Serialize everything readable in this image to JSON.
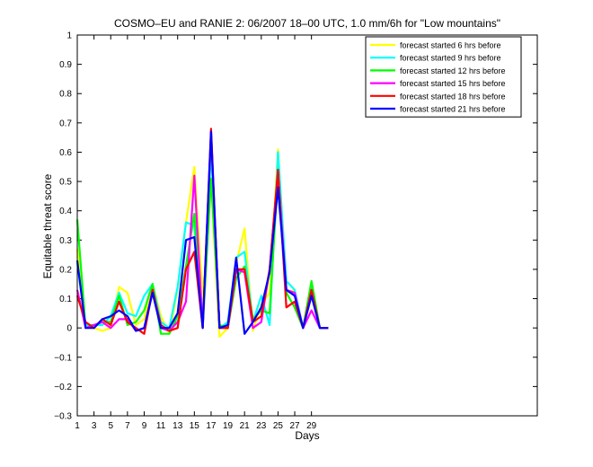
{
  "chart_data": {
    "type": "line",
    "title": "COSMO–EU and RANIE 2: 06/2007 18–00 UTC, 1.0 mm/6h for \"Low mountains\"",
    "xlabel": "Days",
    "ylabel": "Equitable threat score",
    "xlim": [
      1,
      56
    ],
    "ylim": [
      -0.3,
      1
    ],
    "xticks": [
      1,
      3,
      5,
      7,
      9,
      11,
      13,
      15,
      17,
      19,
      21,
      23,
      25,
      27,
      29
    ],
    "xtick_labels": [
      "1",
      "3",
      "5",
      "7",
      "9",
      "11",
      "13",
      "15",
      "17",
      "19",
      "21",
      "23",
      "25",
      "27",
      "29"
    ],
    "yticks": [
      -0.3,
      -0.2,
      -0.1,
      0,
      0.1,
      0.2,
      0.3,
      0.4,
      0.5,
      0.6,
      0.7,
      0.8,
      0.9,
      1
    ],
    "ytick_labels": [
      "−0.3",
      "−0.2",
      "−0.1",
      "0",
      "0.1",
      "0.2",
      "0.3",
      "0.4",
      "0.5",
      "0.6",
      "0.7",
      "0.8",
      "0.9",
      "1"
    ],
    "grid": false,
    "legend_position": "top-right",
    "x": [
      1,
      2,
      3,
      4,
      5,
      6,
      7,
      8,
      9,
      10,
      11,
      12,
      13,
      14,
      15,
      16,
      17,
      18,
      19,
      20,
      21,
      22,
      23,
      24,
      25,
      26,
      27,
      28,
      29,
      30,
      31
    ],
    "series": [
      {
        "name": "forecast started 6 hrs before",
        "color": "#ffff00",
        "values": [
          0.27,
          0.0,
          0.0,
          -0.01,
          0.0,
          0.14,
          0.12,
          0.01,
          0.03,
          0.15,
          0.04,
          -0.02,
          0.13,
          0.36,
          0.55,
          0.1,
          0.5,
          -0.03,
          0.0,
          0.22,
          0.34,
          -0.01,
          0.08,
          0.12,
          0.61,
          0.12,
          0.13,
          0.0,
          0.13,
          0.0,
          0.0
        ]
      },
      {
        "name": "forecast started 9 hrs before",
        "color": "#00ffff",
        "values": [
          0.22,
          0.01,
          0.01,
          0.01,
          0.04,
          0.12,
          0.05,
          0.04,
          0.11,
          0.15,
          0.02,
          0.0,
          0.14,
          0.36,
          0.35,
          0.0,
          0.61,
          0.0,
          0.02,
          0.24,
          0.26,
          0.02,
          0.11,
          0.01,
          0.6,
          0.16,
          0.13,
          0.0,
          0.14,
          0.0,
          0.0
        ]
      },
      {
        "name": "forecast started 12 hrs before",
        "color": "#00ff00",
        "values": [
          0.37,
          0.0,
          0.01,
          0.02,
          0.02,
          0.11,
          0.01,
          0.02,
          0.06,
          0.15,
          -0.02,
          -0.02,
          0.04,
          0.21,
          0.39,
          0.0,
          0.51,
          0.01,
          0.0,
          0.17,
          0.21,
          0.03,
          0.06,
          0.05,
          0.53,
          0.12,
          0.07,
          0.0,
          0.16,
          0.0,
          0.0
        ]
      },
      {
        "name": "forecast started 15 hrs before",
        "color": "#ff00ff",
        "values": [
          0.13,
          0.0,
          0.01,
          0.02,
          0.0,
          0.03,
          0.03,
          -0.01,
          0.0,
          0.13,
          0.0,
          -0.01,
          0.02,
          0.09,
          0.52,
          0.0,
          0.66,
          0.0,
          0.0,
          0.2,
          0.19,
          0.0,
          0.02,
          0.2,
          0.53,
          0.13,
          0.12,
          0.0,
          0.06,
          0.0,
          0.0
        ]
      },
      {
        "name": "forecast started 18 hrs before",
        "color": "#ff0000",
        "values": [
          0.11,
          0.02,
          0.0,
          0.03,
          0.01,
          0.09,
          0.02,
          0.0,
          -0.02,
          0.13,
          0.01,
          -0.01,
          0.0,
          0.2,
          0.26,
          0.0,
          0.68,
          0.0,
          0.0,
          0.2,
          0.2,
          0.02,
          0.04,
          0.2,
          0.54,
          0.07,
          0.09,
          0.0,
          0.13,
          0.0,
          0.0
        ]
      },
      {
        "name": "forecast started 21 hrs before",
        "color": "#0000ff",
        "values": [
          0.23,
          0.0,
          0.0,
          0.03,
          0.04,
          0.06,
          0.04,
          -0.01,
          0.0,
          0.12,
          0.0,
          0.0,
          0.05,
          0.3,
          0.31,
          0.0,
          0.67,
          0.0,
          0.01,
          0.24,
          -0.02,
          0.02,
          0.07,
          0.19,
          0.48,
          0.13,
          0.11,
          0.0,
          0.11,
          0.0,
          0.0
        ]
      }
    ]
  }
}
